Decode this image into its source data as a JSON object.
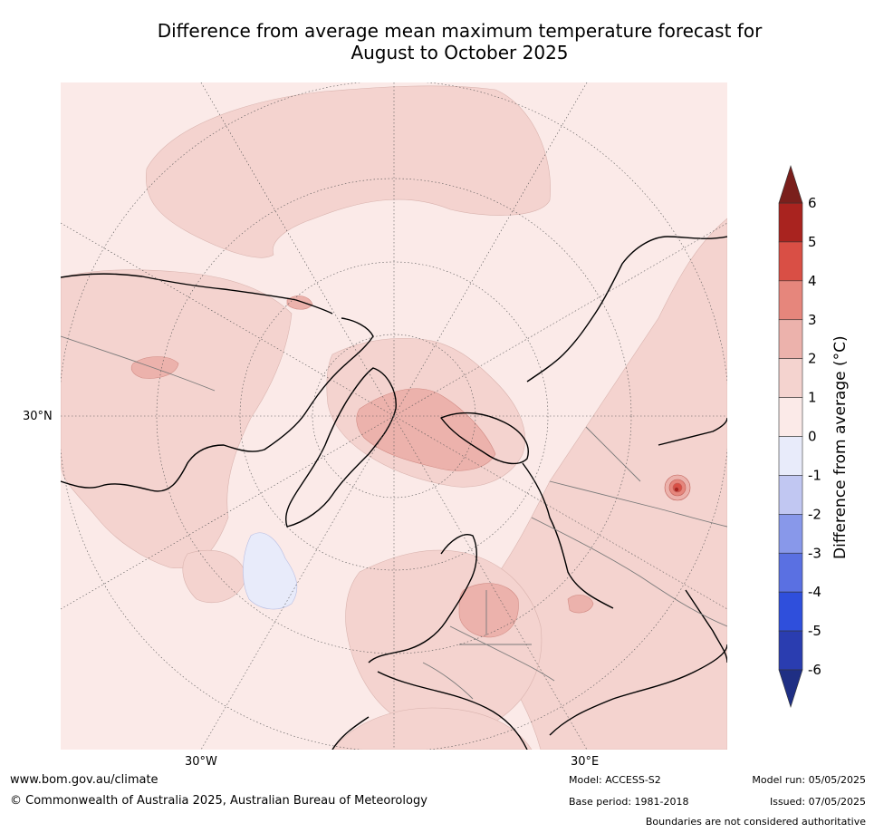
{
  "title_line1": "Difference from average mean maximum temperature forecast for",
  "title_line2": "August to October 2025",
  "map": {
    "lat_label": "30°N",
    "lon_labels": [
      "30°W",
      "30°E"
    ],
    "ocean_color": "#fbeae8",
    "anomaly_colors": {
      "0_to_1": "#fbeae8",
      "1_to_2": "#f4d3cf",
      "2_to_3": "#ecb2ac",
      "3_to_4": "#e6867c",
      "4_to_5": "#d94f45",
      "5_to_6": "#a9231f",
      "neg_0_to_1": "#e8ebfa"
    }
  },
  "colorbar": {
    "label": "Difference from average ($^\\circ$C)",
    "label_display": "Difference from average (°C)",
    "ticks": [
      "6",
      "5",
      "4",
      "3",
      "2",
      "1",
      "0",
      "-1",
      "-2",
      "-3",
      "-4",
      "-5",
      "-6"
    ],
    "bands": [
      {
        "range": "5 to 6",
        "color": "#a9231f"
      },
      {
        "range": "4 to 5",
        "color": "#d94f45"
      },
      {
        "range": "3 to 4",
        "color": "#e6867c"
      },
      {
        "range": "2 to 3",
        "color": "#ecb2ac"
      },
      {
        "range": "1 to 2",
        "color": "#f4d3cf"
      },
      {
        "range": "0 to 1",
        "color": "#fbeae8"
      },
      {
        "range": "-1 to 0",
        "color": "#e8ebfa"
      },
      {
        "range": "-2 to -1",
        "color": "#c1c7f2"
      },
      {
        "range": "-3 to -2",
        "color": "#8898ea"
      },
      {
        "range": "-4 to -3",
        "color": "#5a70e2"
      },
      {
        "range": "-5 to -4",
        "color": "#2f4fdc"
      },
      {
        "range": "-6 to -5",
        "color": "#2a3db0"
      }
    ],
    "over_color": "#7a1f1c",
    "under_color": "#1f2f84"
  },
  "footer": {
    "url": "www.bom.gov.au/climate",
    "copyright": "© Commonwealth of Australia 2025, Australian Bureau of Meteorology",
    "model": "Model: ACCESS-S2",
    "base_period": "Base period: 1981-2018",
    "model_run": "Model run: 05/05/2025",
    "issued": "Issued: 07/05/2025",
    "disclaimer": "Boundaries are not considered authoritative"
  }
}
